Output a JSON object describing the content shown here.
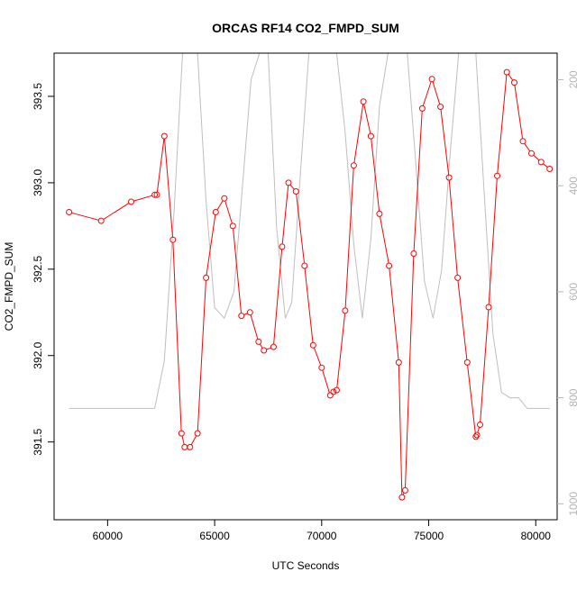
{
  "chart_data": {
    "type": "line",
    "title": "ORCAS RF14 CO2_FMPD_SUM",
    "xlabel": "UTC Seconds",
    "ylabel": "CO2_FMPD_SUM",
    "xlim": [
      57500,
      81000
    ],
    "ylim": [
      391.05,
      393.75
    ],
    "x_ticks": [
      60000,
      65000,
      70000,
      75000,
      80000
    ],
    "y_ticks": [
      391.5,
      392.0,
      392.5,
      393.0,
      393.5
    ],
    "secondary_ylim": [
      1030,
      150
    ],
    "secondary_ticks": [
      200,
      400,
      600,
      800,
      1000
    ],
    "grid": false,
    "legend": "none",
    "colors": {
      "primary": "#ff0000",
      "secondary": "#bebebe",
      "axis": "#000000",
      "secondary_axis": "#b4b4b4"
    },
    "series": [
      {
        "type": "line+points",
        "color": "#ff0000",
        "x": [
          58200,
          59700,
          61100,
          62200,
          62300,
          62650,
          63050,
          63450,
          63600,
          63850,
          64200,
          64600,
          65050,
          65450,
          65850,
          66250,
          66650,
          67050,
          67300,
          67750,
          68150,
          68450,
          68800,
          69200,
          69600,
          70000,
          70400,
          70550,
          70700,
          71100,
          71500,
          71950,
          72300,
          72700,
          73150,
          73600,
          73750,
          73900,
          74300,
          74700,
          75150,
          75550,
          75950,
          76350,
          76800,
          77200,
          77250,
          77400,
          77800,
          78200,
          78650,
          79000,
          79400,
          79800,
          80250,
          80650
        ],
        "y": [
          392.83,
          392.78,
          392.89,
          392.93,
          392.93,
          393.27,
          392.67,
          391.55,
          391.47,
          391.47,
          391.55,
          392.45,
          392.83,
          392.91,
          392.75,
          392.23,
          392.25,
          392.08,
          392.03,
          392.05,
          392.63,
          393.0,
          392.95,
          392.52,
          392.06,
          391.93,
          391.77,
          391.79,
          391.8,
          392.26,
          393.1,
          393.47,
          393.27,
          392.82,
          392.52,
          391.96,
          391.18,
          391.22,
          392.59,
          393.43,
          393.6,
          393.44,
          393.03,
          392.45,
          391.96,
          391.53,
          391.54,
          391.6,
          392.28,
          393.04,
          393.64,
          393.58,
          393.24,
          393.17,
          393.12,
          393.08
        ]
      },
      {
        "type": "line",
        "color": "#bebebe",
        "axis": "secondary",
        "x": [
          58200,
          62200,
          62650,
          63100,
          63500,
          64200,
          64600,
          65000,
          65450,
          65900,
          66300,
          66700,
          67100,
          67500,
          67900,
          68300,
          68600,
          69000,
          69400,
          69800,
          70300,
          70700,
          71100,
          71500,
          71900,
          72300,
          72700,
          73100,
          73500,
          74000,
          74400,
          74800,
          75200,
          75600,
          76000,
          76400,
          76800,
          77200,
          77600,
          78000,
          78400,
          78800,
          79200,
          79600,
          80650
        ],
        "y": [
          820,
          820,
          730,
          450,
          150,
          150,
          430,
          630,
          650,
          600,
          400,
          200,
          150,
          150,
          480,
          650,
          620,
          380,
          150,
          150,
          150,
          150,
          300,
          510,
          650,
          500,
          250,
          150,
          150,
          150,
          360,
          580,
          650,
          560,
          340,
          150,
          150,
          150,
          420,
          680,
          790,
          800,
          800,
          820,
          820
        ]
      }
    ]
  }
}
